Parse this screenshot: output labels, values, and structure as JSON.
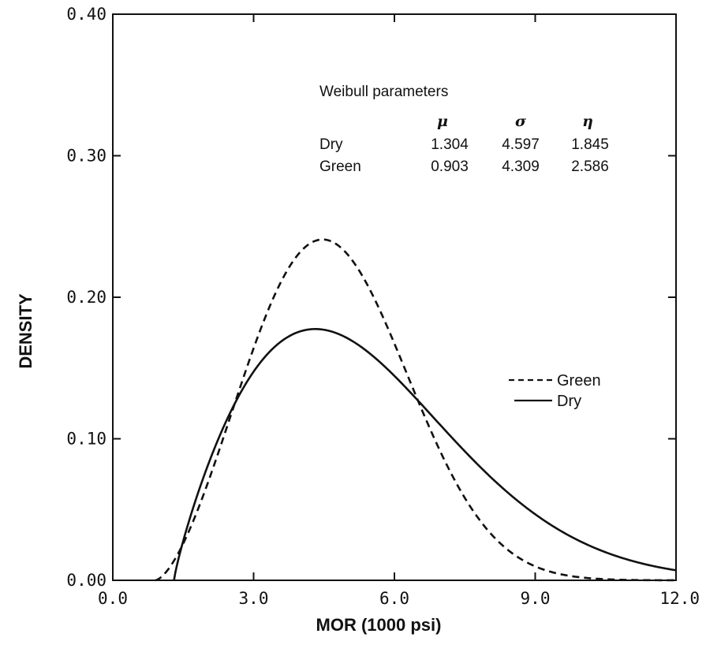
{
  "chart_data": {
    "type": "line",
    "xlabel": "MOR (1000 psi)",
    "ylabel": "DENSITY",
    "xlim": [
      0,
      12
    ],
    "ylim": [
      0,
      0.4
    ],
    "x_ticks": [
      "0.0",
      "3.0",
      "6.0",
      "9.0",
      "12.0"
    ],
    "y_ticks": [
      "0.00",
      "0.10",
      "0.20",
      "0.30",
      "0.40"
    ],
    "grid": false,
    "legend_position": "right",
    "series": [
      {
        "name": "Green",
        "line_style": "dashed",
        "weibull": {
          "mu": 0.903,
          "sigma": 4.309,
          "eta": 2.586
        }
      },
      {
        "name": "Dry",
        "line_style": "solid",
        "weibull": {
          "mu": 1.304,
          "sigma": 4.597,
          "eta": 1.845
        }
      }
    ]
  },
  "annotation": {
    "title": "Weibull parameters",
    "headers": [
      "μ",
      "σ",
      "η"
    ],
    "rows": [
      {
        "label": "Dry",
        "mu": "1.304",
        "sigma": "4.597",
        "eta": "1.845"
      },
      {
        "label": "Green",
        "mu": "0.903",
        "sigma": "4.309",
        "eta": "2.586"
      }
    ]
  },
  "colors": {
    "line": "#111111",
    "background": "#ffffff"
  }
}
